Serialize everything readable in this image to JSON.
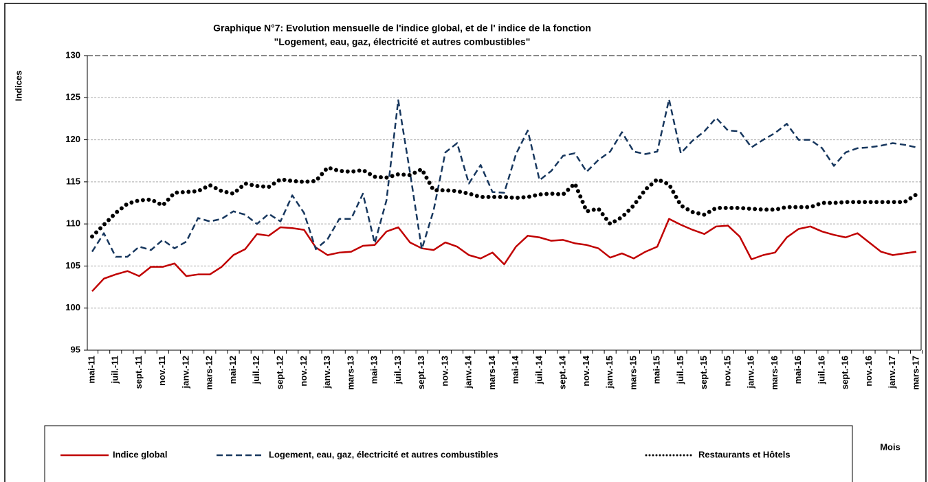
{
  "chart_data": {
    "type": "line",
    "title": "Graphique N°7: Evolution  mensuelle de l'indice global,  et de l' indice de la  fonction",
    "subtitle": "\"Logement, eau, gaz, électricité et autres combustibles\"",
    "y_label": "Indices",
    "x_label": "Mois",
    "categories": [
      "mai-11",
      null,
      "juil.-11",
      null,
      "sept.-11",
      null,
      "nov.-11",
      null,
      "janv.-12",
      null,
      "mars-12",
      null,
      "mai-12",
      null,
      "juil.-12",
      null,
      "sept.-12",
      null,
      "nov.-12",
      null,
      "janv.-13",
      null,
      "mars-13",
      null,
      "mai-13",
      null,
      "juil.-13",
      null,
      "sept.-13",
      null,
      "nov.-13",
      null,
      "janv.-14",
      null,
      "mars-14",
      null,
      "mai-14",
      null,
      "juil.-14",
      null,
      "sept.-14",
      null,
      "nov.-14",
      null,
      "janv.-15",
      null,
      "mars-15",
      null,
      "mai-15",
      null,
      "juil.-15",
      null,
      "sept.-15",
      null,
      "nov.-15",
      null,
      "janv.-16",
      null,
      "mars-16",
      null,
      "mai-16",
      null,
      "juil.-16",
      null,
      "sept.-16",
      null,
      "nov.-16",
      null,
      "janv.-17",
      null,
      "mars-17"
    ],
    "series": [
      {
        "name": "Indice global",
        "color": "#c00000",
        "dash": "solid",
        "values": [
          102.0,
          103.5,
          104.0,
          104.4,
          103.8,
          104.9,
          104.9,
          105.3,
          103.8,
          104.0,
          104.0,
          104.9,
          106.3,
          107.0,
          108.8,
          108.6,
          109.6,
          109.5,
          109.3,
          107.2,
          106.3,
          106.6,
          106.7,
          107.4,
          107.5,
          109.1,
          109.6,
          107.8,
          107.1,
          106.9,
          107.8,
          107.3,
          106.3,
          105.9,
          106.6,
          105.2,
          107.3,
          108.6,
          108.4,
          108.0,
          108.1,
          107.7,
          107.5,
          107.1,
          106.0,
          106.5,
          105.9,
          106.7,
          107.3,
          110.6,
          109.9,
          109.3,
          108.8,
          109.7,
          109.8,
          108.5,
          105.8,
          106.3,
          106.6,
          108.4,
          109.4,
          109.7,
          109.1,
          108.7,
          108.4,
          108.9,
          107.8,
          106.7,
          106.3,
          106.5,
          106.7
        ]
      },
      {
        "name": "Logement, eau, gaz, électricité et autres combustibles",
        "color": "#17375e",
        "dash": "dashed",
        "values": [
          106.7,
          108.9,
          106.1,
          106.1,
          107.3,
          106.9,
          108.1,
          107.1,
          107.9,
          110.7,
          110.3,
          110.6,
          111.5,
          111.1,
          110.0,
          111.2,
          110.3,
          113.4,
          111.3,
          107.0,
          108.2,
          110.6,
          110.6,
          113.6,
          107.7,
          112.8,
          124.7,
          116.1,
          107.0,
          111.6,
          118.5,
          119.6,
          114.8,
          117.0,
          113.8,
          113.7,
          118.3,
          121.1,
          115.2,
          116.3,
          118.1,
          118.4,
          116.2,
          117.6,
          118.6,
          120.9,
          118.6,
          118.3,
          118.6,
          124.8,
          118.4,
          119.9,
          121.0,
          122.6,
          121.1,
          121.0,
          119.1,
          120.0,
          120.8,
          121.9,
          120.0,
          120.0,
          119.0,
          116.9,
          118.5,
          119.0,
          119.1,
          119.3,
          119.6,
          119.4,
          119.1
        ]
      },
      {
        "name": "Restaurants et Hôtels",
        "color": "#000000",
        "dash": "dotted",
        "values": [
          108.5,
          109.9,
          111.3,
          112.4,
          112.8,
          112.9,
          112.2,
          113.7,
          113.8,
          113.9,
          114.6,
          113.9,
          113.6,
          114.8,
          114.5,
          114.4,
          115.3,
          115.1,
          115.0,
          115.1,
          116.7,
          116.3,
          116.2,
          116.4,
          115.6,
          115.5,
          115.9,
          115.8,
          116.5,
          114.0,
          114.0,
          113.9,
          113.6,
          113.2,
          113.2,
          113.2,
          113.1,
          113.2,
          113.5,
          113.6,
          113.5,
          114.8,
          111.5,
          111.8,
          110.0,
          110.8,
          112.2,
          114.1,
          115.3,
          114.7,
          112.2,
          111.4,
          111.1,
          111.9,
          111.9,
          111.9,
          111.8,
          111.7,
          111.7,
          112.0,
          112.0,
          112.0,
          112.5,
          112.5,
          112.6,
          112.6,
          112.6,
          112.6,
          112.6,
          112.6,
          113.5
        ]
      }
    ],
    "ylim": [
      95,
      130
    ],
    "yticks": [
      95,
      100,
      105,
      110,
      115,
      120,
      125,
      130
    ],
    "grid": true,
    "legend": "bottom"
  }
}
